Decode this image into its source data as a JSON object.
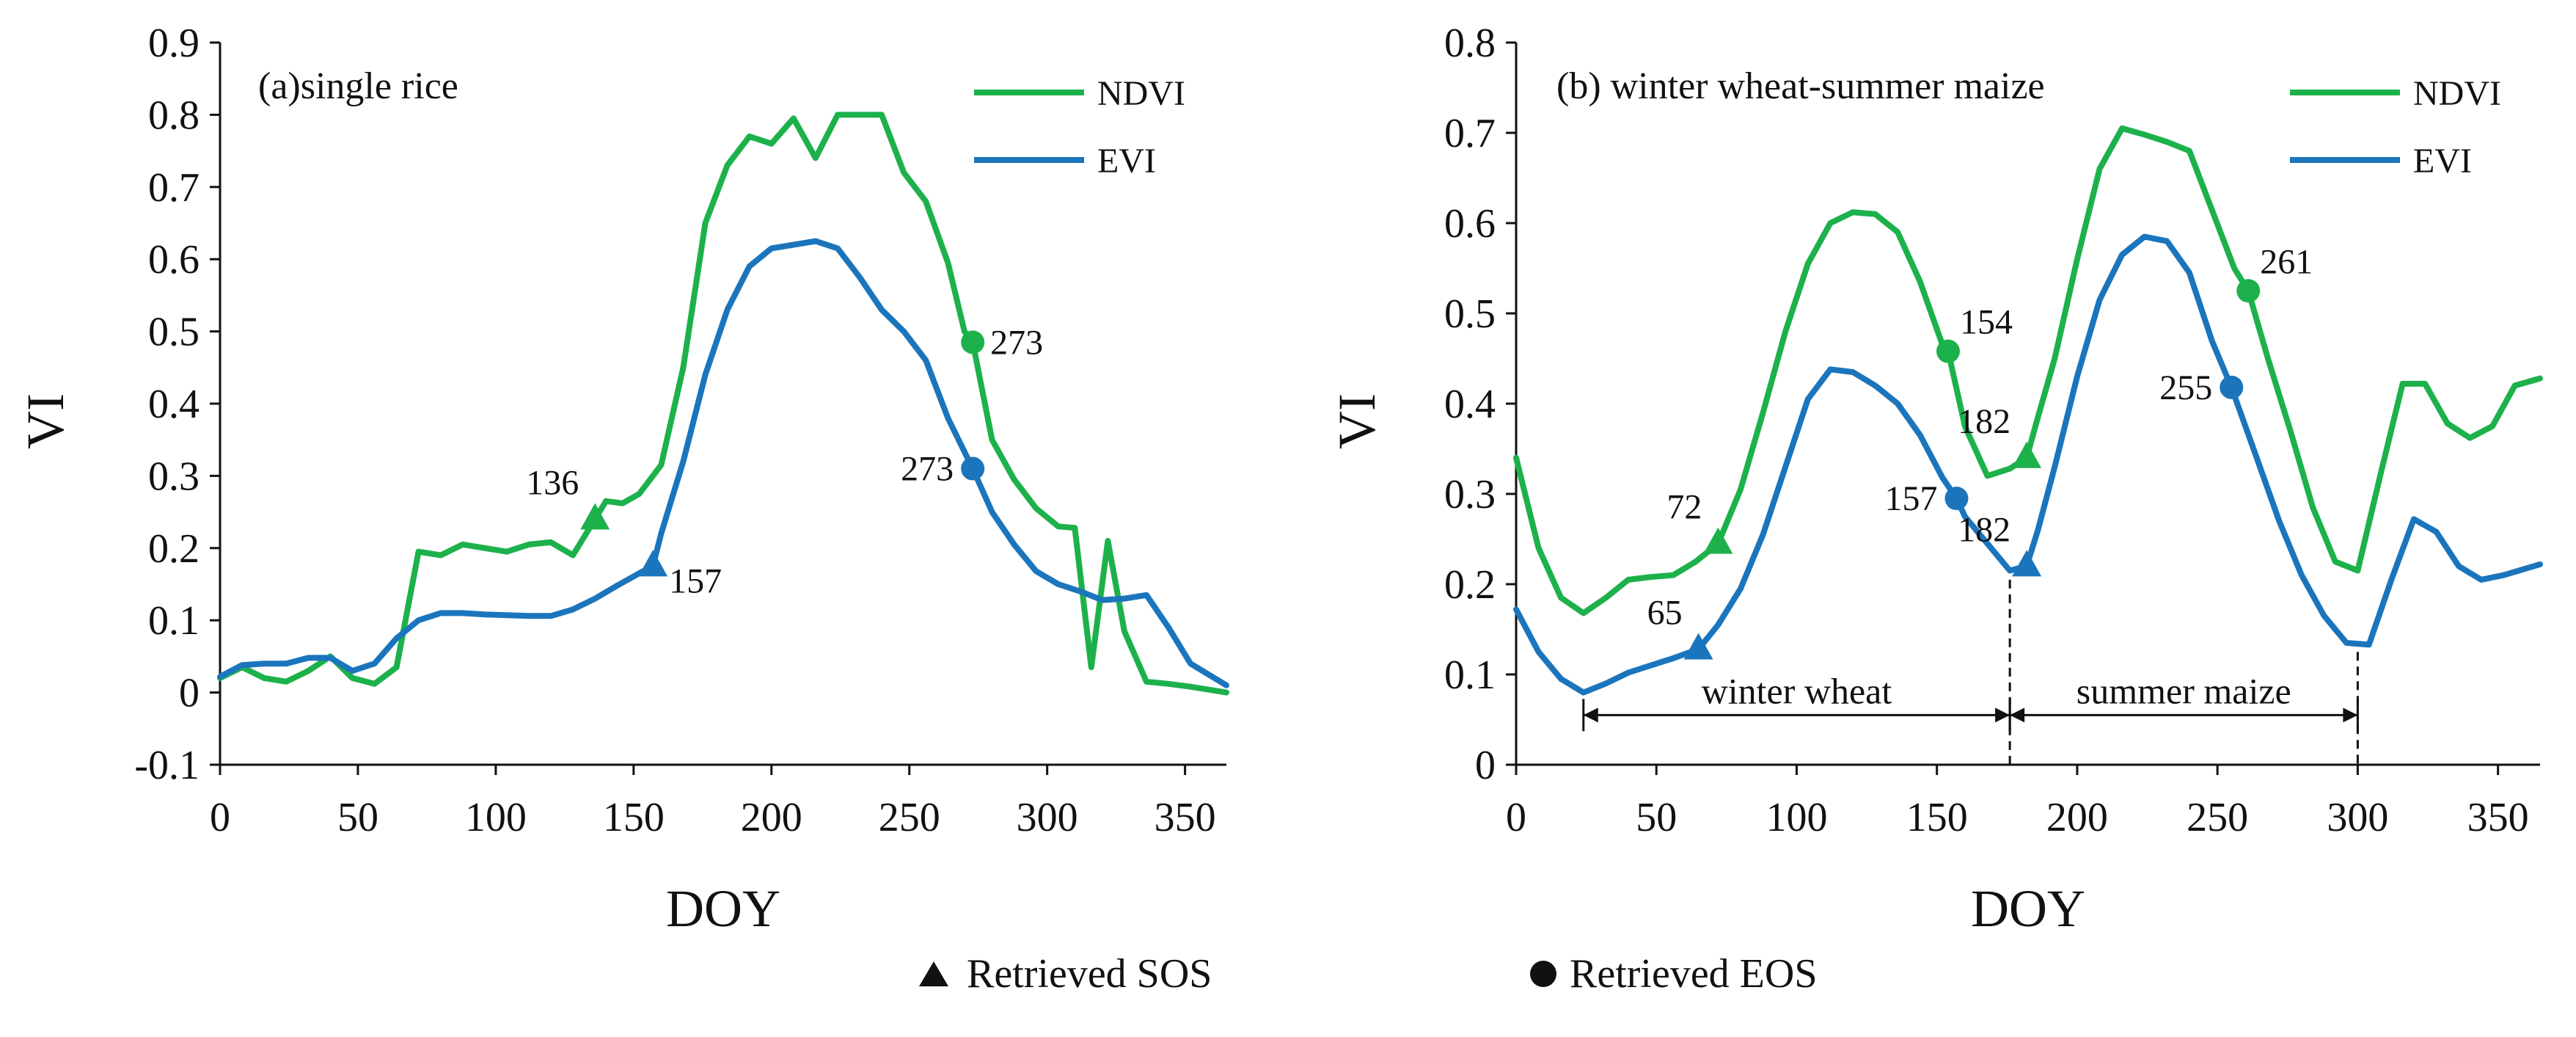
{
  "legend": {
    "sos_label": "Retrieved SOS",
    "eos_label": "Retrieved EOS"
  },
  "chart_data": [
    {
      "type": "line",
      "title": "(a)single rice",
      "xlabel": "DOY",
      "ylabel": "VI",
      "xlim": [
        0,
        365
      ],
      "ylim": [
        -0.1,
        0.9
      ],
      "xticks": [
        0,
        50,
        100,
        150,
        200,
        250,
        300,
        350
      ],
      "yticks": [
        -0.1,
        0,
        0.1,
        0.2,
        0.3,
        0.4,
        0.5,
        0.6,
        0.7,
        0.8,
        0.9
      ],
      "colors": {
        "NDVI": "#1db14b",
        "EVI": "#1b75bc"
      },
      "series": [
        {
          "name": "NDVI",
          "x": [
            0,
            8,
            16,
            24,
            32,
            40,
            48,
            56,
            64,
            72,
            80,
            88,
            96,
            104,
            112,
            120,
            128,
            136,
            140,
            146,
            152,
            160,
            168,
            176,
            184,
            192,
            200,
            208,
            216,
            224,
            232,
            240,
            248,
            256,
            264,
            270,
            273,
            280,
            288,
            296,
            304,
            310,
            316,
            322,
            328,
            336,
            344,
            352,
            365
          ],
          "values": [
            0.02,
            0.035,
            0.02,
            0.015,
            0.03,
            0.05,
            0.02,
            0.012,
            0.035,
            0.195,
            0.19,
            0.205,
            0.2,
            0.195,
            0.205,
            0.208,
            0.19,
            0.24,
            0.265,
            0.262,
            0.275,
            0.315,
            0.45,
            0.65,
            0.73,
            0.77,
            0.76,
            0.795,
            0.74,
            0.8,
            0.8,
            0.8,
            0.72,
            0.68,
            0.595,
            0.5,
            0.485,
            0.35,
            0.295,
            0.255,
            0.23,
            0.228,
            0.035,
            0.21,
            0.085,
            0.015,
            0.012,
            0.008,
            0.0
          ]
        },
        {
          "name": "EVI",
          "x": [
            0,
            8,
            16,
            24,
            32,
            40,
            48,
            56,
            64,
            72,
            80,
            88,
            96,
            104,
            112,
            120,
            128,
            136,
            144,
            152,
            157,
            160,
            168,
            176,
            184,
            192,
            200,
            208,
            216,
            224,
            232,
            240,
            248,
            256,
            264,
            273,
            280,
            288,
            296,
            304,
            312,
            320,
            328,
            336,
            344,
            352,
            365
          ],
          "values": [
            0.022,
            0.038,
            0.04,
            0.04,
            0.048,
            0.048,
            0.03,
            0.04,
            0.075,
            0.1,
            0.11,
            0.11,
            0.108,
            0.107,
            0.106,
            0.106,
            0.115,
            0.13,
            0.148,
            0.165,
            0.175,
            0.22,
            0.32,
            0.44,
            0.53,
            0.59,
            0.615,
            0.62,
            0.625,
            0.615,
            0.575,
            0.53,
            0.5,
            0.46,
            0.38,
            0.31,
            0.25,
            0.205,
            0.168,
            0.15,
            0.14,
            0.128,
            0.13,
            0.135,
            0.09,
            0.04,
            0.01
          ]
        }
      ],
      "markers": [
        {
          "series": "NDVI",
          "kind": "SOS",
          "doy": 136,
          "value": 0.24,
          "label": "136",
          "label_side": "left-up"
        },
        {
          "series": "EVI",
          "kind": "SOS",
          "doy": 157,
          "value": 0.175,
          "label": "157",
          "label_side": "right-down"
        },
        {
          "series": "NDVI",
          "kind": "EOS",
          "doy": 273,
          "value": 0.485,
          "label": "273",
          "label_side": "right"
        },
        {
          "series": "EVI",
          "kind": "EOS",
          "doy": 273,
          "value": 0.31,
          "label": "273",
          "label_side": "left"
        }
      ]
    },
    {
      "type": "line",
      "title": "(b) winter wheat-summer maize",
      "xlabel": "DOY",
      "ylabel": "VI",
      "xlim": [
        0,
        365
      ],
      "ylim": [
        0,
        0.8
      ],
      "xticks": [
        0,
        50,
        100,
        150,
        200,
        250,
        300,
        350
      ],
      "yticks": [
        0,
        0.1,
        0.2,
        0.3,
        0.4,
        0.5,
        0.6,
        0.7,
        0.8
      ],
      "colors": {
        "NDVI": "#1db14b",
        "EVI": "#1b75bc"
      },
      "series": [
        {
          "name": "NDVI",
          "x": [
            0,
            8,
            16,
            24,
            32,
            40,
            48,
            56,
            64,
            72,
            80,
            88,
            96,
            104,
            112,
            120,
            128,
            136,
            144,
            152,
            154,
            160,
            168,
            176,
            182,
            186,
            192,
            200,
            208,
            216,
            224,
            232,
            240,
            248,
            256,
            261,
            268,
            276,
            284,
            292,
            300,
            308,
            316,
            324,
            332,
            340,
            348,
            356,
            365
          ],
          "values": [
            0.34,
            0.24,
            0.185,
            0.168,
            0.185,
            0.205,
            0.208,
            0.21,
            0.225,
            0.245,
            0.305,
            0.39,
            0.48,
            0.555,
            0.6,
            0.612,
            0.61,
            0.59,
            0.535,
            0.465,
            0.458,
            0.375,
            0.32,
            0.328,
            0.34,
            0.385,
            0.45,
            0.56,
            0.66,
            0.705,
            0.698,
            0.69,
            0.68,
            0.615,
            0.55,
            0.525,
            0.45,
            0.37,
            0.285,
            0.225,
            0.215,
            0.32,
            0.422,
            0.422,
            0.378,
            0.362,
            0.375,
            0.42,
            0.428
          ]
        },
        {
          "name": "EVI",
          "x": [
            0,
            8,
            16,
            24,
            32,
            40,
            48,
            56,
            65,
            72,
            80,
            88,
            96,
            104,
            112,
            120,
            128,
            136,
            144,
            152,
            157,
            160,
            168,
            176,
            182,
            186,
            192,
            200,
            208,
            216,
            224,
            232,
            240,
            248,
            255,
            264,
            272,
            280,
            288,
            296,
            304,
            312,
            320,
            328,
            336,
            344,
            352,
            365
          ],
          "values": [
            0.172,
            0.125,
            0.095,
            0.08,
            0.09,
            0.102,
            0.11,
            0.118,
            0.128,
            0.155,
            0.195,
            0.255,
            0.33,
            0.405,
            0.438,
            0.435,
            0.42,
            0.4,
            0.365,
            0.318,
            0.295,
            0.275,
            0.245,
            0.215,
            0.22,
            0.26,
            0.33,
            0.43,
            0.515,
            0.565,
            0.585,
            0.58,
            0.545,
            0.47,
            0.418,
            0.34,
            0.27,
            0.21,
            0.165,
            0.135,
            0.133,
            0.205,
            0.272,
            0.258,
            0.22,
            0.205,
            0.21,
            0.222
          ]
        }
      ],
      "markers": [
        {
          "series": "NDVI",
          "kind": "SOS",
          "doy": 72,
          "value": 0.245,
          "label": "72",
          "label_side": "left-up"
        },
        {
          "series": "EVI",
          "kind": "SOS",
          "doy": 65,
          "value": 0.128,
          "label": "65",
          "label_side": "left-up"
        },
        {
          "series": "NDVI",
          "kind": "EOS",
          "doy": 154,
          "value": 0.458,
          "label": "154",
          "label_side": "right-up"
        },
        {
          "series": "EVI",
          "kind": "EOS",
          "doy": 157,
          "value": 0.295,
          "label": "157",
          "label_side": "left"
        },
        {
          "series": "NDVI",
          "kind": "SOS",
          "doy": 182,
          "value": 0.34,
          "label": "182",
          "label_side": "left-up"
        },
        {
          "series": "EVI",
          "kind": "SOS",
          "doy": 182,
          "value": 0.22,
          "label": "182",
          "label_side": "left-up"
        },
        {
          "series": "NDVI",
          "kind": "EOS",
          "doy": 261,
          "value": 0.525,
          "label": "261",
          "label_side": "right-up"
        },
        {
          "series": "EVI",
          "kind": "EOS",
          "doy": 255,
          "value": 0.418,
          "label": "255",
          "label_side": "left"
        }
      ],
      "periods": [
        {
          "label": "winter wheat",
          "start": 24,
          "end": 176
        },
        {
          "label": "summer maize",
          "start": 176,
          "end": 300
        }
      ]
    }
  ]
}
